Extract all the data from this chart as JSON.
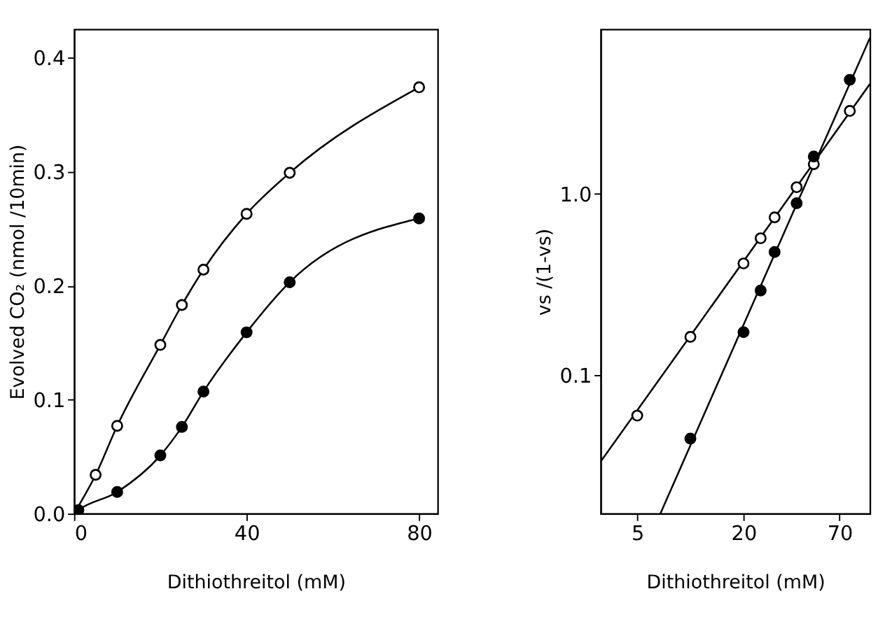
{
  "chart_data": [
    {
      "type": "scatter",
      "xlabel": "Dithiothreitol (mM)",
      "ylabel": "Evolved CO₂ (nmol /10min)",
      "xlim": [
        0,
        84.3
      ],
      "ylim": [
        0,
        0.425
      ],
      "xticks": [
        0,
        40,
        80
      ],
      "yticks": [
        {
          "value": 0,
          "label": "0.0"
        },
        0.1,
        0.2,
        0.3,
        0.4
      ],
      "grid": false,
      "marker": "circle",
      "series": [
        {
          "color": "#ffffff",
          "x": [
            5,
            10,
            20,
            25,
            30,
            40,
            50,
            80
          ],
          "values": [
            0.034,
            0.077,
            0.148,
            0.183,
            0.214,
            0.263,
            0.299,
            0.374
          ]
        },
        {
          "color": "#000000",
          "x": [
            1,
            10,
            20,
            25,
            30,
            40,
            50,
            80
          ],
          "values": [
            0.003,
            0.019,
            0.051,
            0.076,
            0.107,
            0.159,
            0.203,
            0.259
          ]
        },
        {
          "type": "line",
          "color": "#000000",
          "marker": "none",
          "line_style": "solid",
          "x": [
            0,
            5,
            10,
            20,
            25,
            30,
            40,
            50,
            80
          ],
          "values": [
            0,
            0.034,
            0.077,
            0.148,
            0.183,
            0.214,
            0.263,
            0.299,
            0.374
          ]
        },
        {
          "type": "line",
          "color": "#000000",
          "marker": "none",
          "line_style": "solid",
          "x": [
            0,
            1,
            10,
            20,
            25,
            30,
            40,
            50,
            80
          ],
          "values": [
            0,
            0.003,
            0.019,
            0.051,
            0.076,
            0.107,
            0.159,
            0.203,
            0.259
          ]
        }
      ]
    },
    {
      "type": "scatter",
      "xlabel": "Dithiothreitol (mM)",
      "ylabel": "vs /(1-vs)",
      "log": "xy",
      "xlim": [
        3.1,
        104
      ],
      "ylim": [
        0.0173,
        8.1
      ],
      "xticks": [
        5,
        20,
        70
      ],
      "yticks": [
        0.1,
        {
          "value": 1,
          "label": "1.0"
        }
      ],
      "grid": false,
      "marker": "circle",
      "series": [
        {
          "color": "#ffffff",
          "x": [
            5,
            10,
            20,
            25,
            30,
            40,
            50,
            80
          ],
          "values": [
            0.06,
            0.163,
            0.414,
            0.57,
            0.743,
            1.09,
            1.46,
            2.87
          ]
        },
        {
          "color": "#000000",
          "x": [
            10,
            20,
            25,
            30,
            40,
            50,
            80
          ],
          "values": [
            0.0448,
            0.173,
            0.294,
            0.479,
            0.889,
            1.61,
            4.26
          ]
        },
        {
          "type": "line",
          "color": "#000000",
          "marker": "none",
          "line_style": "solid",
          "x": [
            3.1,
            104
          ],
          "values": [
            0.0334,
            4.04
          ]
        },
        {
          "type": "line",
          "color": "#000000",
          "marker": "none",
          "line_style": "solid",
          "x": [
            6.76,
            104
          ],
          "values": [
            0.0173,
            7.25
          ]
        }
      ]
    }
  ]
}
